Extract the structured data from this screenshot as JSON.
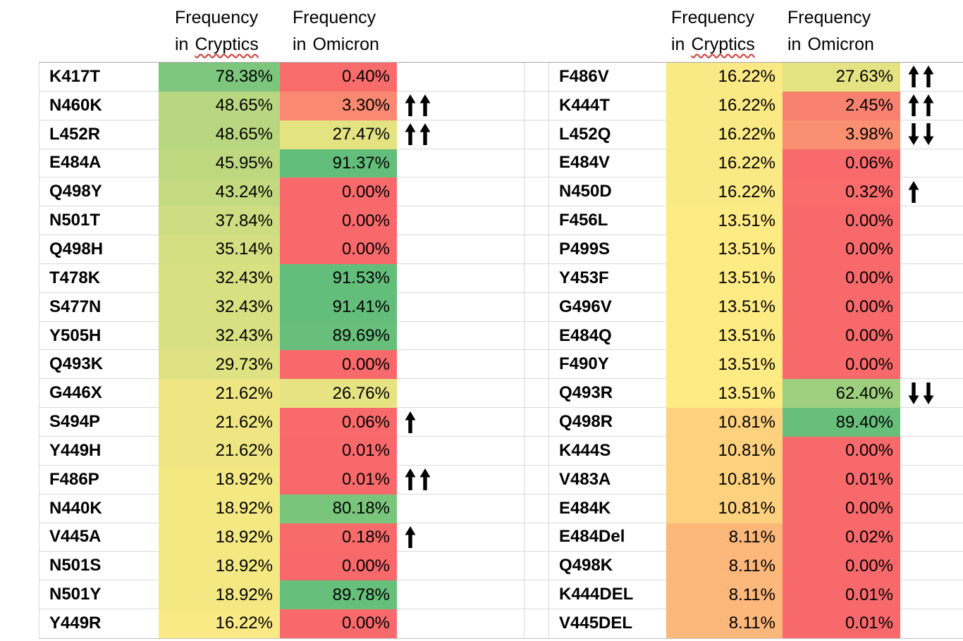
{
  "chart_data": {
    "type": "heatmap-table",
    "description_visible_elements": "Two side-by-side heatmap tables of mutation frequencies with trend arrows",
    "color_scale": {
      "min_value": 0,
      "mid_value": 13.51,
      "max_value": 91.53,
      "min_color": "#F8696B",
      "mid_color": "#FFEB84",
      "max_color": "#63BE7B"
    },
    "spellcheck_underline_color": "#CD3A35",
    "tables": [
      {
        "id": "left",
        "header_cryptics": {
          "line1": "Frequency",
          "line2_prefix": "in",
          "line2_word": "Cryptics",
          "spellcheck_underline": true
        },
        "header_omicron": {
          "line1": "Frequency",
          "line2_prefix": "in",
          "line2_word": "Omicron",
          "spellcheck_underline": false
        },
        "rows": [
          {
            "mutation": "K417T",
            "freq_cryptics": 78.38,
            "freq_omicron": 0.4,
            "arrows": ""
          },
          {
            "mutation": "N460K",
            "freq_cryptics": 48.65,
            "freq_omicron": 3.3,
            "arrows": "up2"
          },
          {
            "mutation": "L452R",
            "freq_cryptics": 48.65,
            "freq_omicron": 27.47,
            "arrows": "up2"
          },
          {
            "mutation": "E484A",
            "freq_cryptics": 45.95,
            "freq_omicron": 91.37,
            "arrows": ""
          },
          {
            "mutation": "Q498Y",
            "freq_cryptics": 43.24,
            "freq_omicron": 0.0,
            "arrows": ""
          },
          {
            "mutation": "N501T",
            "freq_cryptics": 37.84,
            "freq_omicron": 0.0,
            "arrows": ""
          },
          {
            "mutation": "Q498H",
            "freq_cryptics": 35.14,
            "freq_omicron": 0.0,
            "arrows": ""
          },
          {
            "mutation": "T478K",
            "freq_cryptics": 32.43,
            "freq_omicron": 91.53,
            "arrows": ""
          },
          {
            "mutation": "S477N",
            "freq_cryptics": 32.43,
            "freq_omicron": 91.41,
            "arrows": ""
          },
          {
            "mutation": "Y505H",
            "freq_cryptics": 32.43,
            "freq_omicron": 89.69,
            "arrows": ""
          },
          {
            "mutation": "Q493K",
            "freq_cryptics": 29.73,
            "freq_omicron": 0.0,
            "arrows": ""
          },
          {
            "mutation": "G446X",
            "freq_cryptics": 21.62,
            "freq_omicron": 26.76,
            "arrows": ""
          },
          {
            "mutation": "S494P",
            "freq_cryptics": 21.62,
            "freq_omicron": 0.06,
            "arrows": "up1"
          },
          {
            "mutation": "Y449H",
            "freq_cryptics": 21.62,
            "freq_omicron": 0.01,
            "arrows": ""
          },
          {
            "mutation": "F486P",
            "freq_cryptics": 18.92,
            "freq_omicron": 0.01,
            "arrows": "up2"
          },
          {
            "mutation": "N440K",
            "freq_cryptics": 18.92,
            "freq_omicron": 80.18,
            "arrows": ""
          },
          {
            "mutation": "V445A",
            "freq_cryptics": 18.92,
            "freq_omicron": 0.18,
            "arrows": "up1"
          },
          {
            "mutation": "N501S",
            "freq_cryptics": 18.92,
            "freq_omicron": 0.0,
            "arrows": ""
          },
          {
            "mutation": "N501Y",
            "freq_cryptics": 18.92,
            "freq_omicron": 89.78,
            "arrows": ""
          },
          {
            "mutation": "Y449R",
            "freq_cryptics": 16.22,
            "freq_omicron": 0.0,
            "arrows": ""
          }
        ]
      },
      {
        "id": "right",
        "header_cryptics": {
          "line1": "Frequency",
          "line2_prefix": "in",
          "line2_word": "Cryptics",
          "spellcheck_underline": true
        },
        "header_omicron": {
          "line1": "Frequency",
          "line2_prefix": "in",
          "line2_word": "Omicron",
          "spellcheck_underline": false
        },
        "rows": [
          {
            "mutation": "F486V",
            "freq_cryptics": 16.22,
            "freq_omicron": 27.63,
            "arrows": "up2"
          },
          {
            "mutation": "K444T",
            "freq_cryptics": 16.22,
            "freq_omicron": 2.45,
            "arrows": "up2"
          },
          {
            "mutation": "L452Q",
            "freq_cryptics": 16.22,
            "freq_omicron": 3.98,
            "arrows": "down2"
          },
          {
            "mutation": "E484V",
            "freq_cryptics": 16.22,
            "freq_omicron": 0.06,
            "arrows": ""
          },
          {
            "mutation": "N450D",
            "freq_cryptics": 16.22,
            "freq_omicron": 0.32,
            "arrows": "up1"
          },
          {
            "mutation": "F456L",
            "freq_cryptics": 13.51,
            "freq_omicron": 0.0,
            "arrows": ""
          },
          {
            "mutation": "P499S",
            "freq_cryptics": 13.51,
            "freq_omicron": 0.0,
            "arrows": ""
          },
          {
            "mutation": "Y453F",
            "freq_cryptics": 13.51,
            "freq_omicron": 0.0,
            "arrows": ""
          },
          {
            "mutation": "G496V",
            "freq_cryptics": 13.51,
            "freq_omicron": 0.0,
            "arrows": ""
          },
          {
            "mutation": "E484Q",
            "freq_cryptics": 13.51,
            "freq_omicron": 0.0,
            "arrows": ""
          },
          {
            "mutation": "F490Y",
            "freq_cryptics": 13.51,
            "freq_omicron": 0.0,
            "arrows": ""
          },
          {
            "mutation": "Q493R",
            "freq_cryptics": 13.51,
            "freq_omicron": 62.4,
            "arrows": "down2"
          },
          {
            "mutation": "Q498R",
            "freq_cryptics": 10.81,
            "freq_omicron": 89.4,
            "arrows": ""
          },
          {
            "mutation": "K444S",
            "freq_cryptics": 10.81,
            "freq_omicron": 0.0,
            "arrows": ""
          },
          {
            "mutation": "V483A",
            "freq_cryptics": 10.81,
            "freq_omicron": 0.01,
            "arrows": ""
          },
          {
            "mutation": "E484K",
            "freq_cryptics": 10.81,
            "freq_omicron": 0.0,
            "arrows": ""
          },
          {
            "mutation": "E484Del",
            "freq_cryptics": 8.11,
            "freq_omicron": 0.02,
            "arrows": ""
          },
          {
            "mutation": "Q498K",
            "freq_cryptics": 8.11,
            "freq_omicron": 0.0,
            "arrows": ""
          },
          {
            "mutation": "K444DEL",
            "freq_cryptics": 8.11,
            "freq_omicron": 0.01,
            "arrows": ""
          },
          {
            "mutation": "V445DEL",
            "freq_cryptics": 8.11,
            "freq_omicron": 0.01,
            "arrows": ""
          }
        ]
      }
    ]
  }
}
